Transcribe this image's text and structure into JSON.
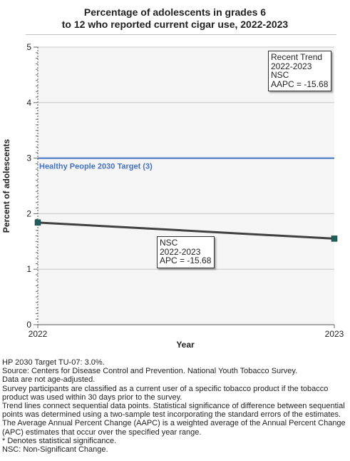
{
  "chart_data": {
    "type": "line",
    "title_lines": [
      "Percentage of adolescents in grades 6",
      "to 12 who reported current cigar use, 2022-2023"
    ],
    "xlabel": "Year",
    "ylabel": "Percent of adolescents",
    "x": [
      "2022",
      "2023"
    ],
    "series": [
      {
        "values": [
          1.84,
          1.55
        ],
        "color": "#404040",
        "marker_color": "#1f5f5b"
      }
    ],
    "ylim": [
      0,
      5
    ],
    "yticks": [
      "0",
      "1",
      "2",
      "3",
      "4",
      "5"
    ],
    "grid": true,
    "target": {
      "value": 3,
      "label": "Healthy People 2030 Target (3)",
      "color": "#4472c4"
    },
    "annotations": {
      "segment": [
        "NSC",
        "2022-2023",
        "APC = -15.68"
      ],
      "recent_trend": [
        "Recent Trend",
        "2022-2023",
        "NSC",
        "AAPC = -15.68"
      ]
    },
    "plot_background": "#f5f5f5"
  },
  "notes": [
    "HP 2030 Target TU-07: 3.0%.",
    "Source: Centers for Disease Control and Prevention. National Youth Tobacco Survey.",
    "Data are not age-adjusted.",
    "Survey participants are classified as a current user of a specific tobacco product if the tobacco product was used within 30 days prior to the survey.",
    "Trend lines connect sequential data points. Statistical significance of difference between sequential points was determined using a two-sample test incorporating the standard errors of the estimates.",
    "The Average Annual Percent Change (AAPC) is a weighted average of the Annual Percent Change (APC) estimates that occur over the specified year range.",
    "* Denotes statistical significance.",
    "NSC: Non-Significant Change."
  ]
}
